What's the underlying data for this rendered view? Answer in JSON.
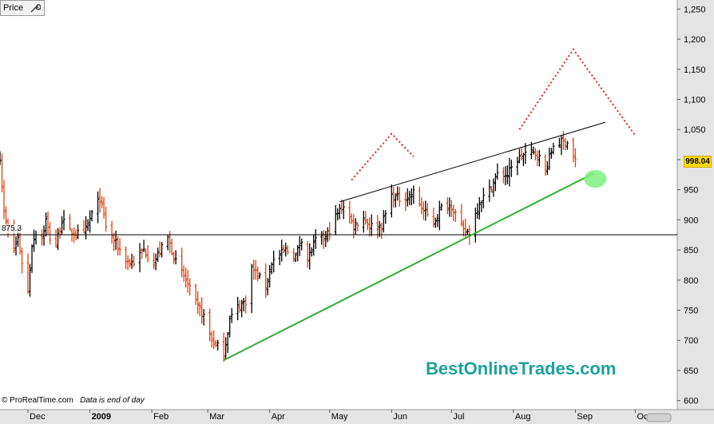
{
  "price_tab": {
    "label": "Price",
    "icon": "wrench-icon"
  },
  "watermark": "BestOnlineTrades.com",
  "footer": {
    "copyright": "© ProRealTime.com",
    "note": "Data is end of day"
  },
  "last_price_label": "998.04",
  "hline_label": "875.3",
  "colors": {
    "up_bar": "#000000",
    "down_bar": "#e8400c",
    "trend_support": "#2fae2f",
    "trend_resistance": "#000000",
    "projection": "#e8201c",
    "highlight": "#7df07d",
    "last_price_badge": "#ffdc00",
    "watermark": "#1aa39a"
  },
  "chart_data": {
    "type": "ohlc",
    "yticks": [
      600,
      650,
      700,
      750,
      800,
      850,
      900,
      950,
      1000,
      1050,
      1100,
      1150,
      1200,
      1250
    ],
    "ytick_labels": [
      "600",
      "650",
      "700",
      "750",
      "800",
      "850",
      "900",
      "950",
      "1,000",
      "1,050",
      "1,100",
      "1,150",
      "1,200",
      "1,250"
    ],
    "ylim": [
      585,
      1265
    ],
    "xlim": [
      "2008-11-17",
      "2009-10-22"
    ],
    "xticks": [
      {
        "label": "Dec",
        "date": "2008-12-01"
      },
      {
        "label": "2009",
        "date": "2009-01-01"
      },
      {
        "label": "Feb",
        "date": "2009-02-01"
      },
      {
        "label": "Mar",
        "date": "2009-03-01"
      },
      {
        "label": "Apr",
        "date": "2009-04-01"
      },
      {
        "label": "May",
        "date": "2009-05-01"
      },
      {
        "label": "Jun",
        "date": "2009-06-01"
      },
      {
        "label": "Jul",
        "date": "2009-07-01"
      },
      {
        "label": "Aug",
        "date": "2009-08-01"
      },
      {
        "label": "Sep",
        "date": "2009-09-01"
      },
      {
        "label": "Oct",
        "date": "2009-10-01"
      }
    ],
    "horizontal_line": 875.3,
    "support_line": {
      "start": [
        "2009-03-09",
        667
      ],
      "end": [
        "2009-09-10",
        977
      ]
    },
    "resistance_line": {
      "start": [
        "2009-05-06",
        930
      ],
      "end": [
        "2009-09-16",
        1062
      ]
    },
    "projection_lines": [
      {
        "points": [
          [
            "2009-05-12",
            966
          ],
          [
            "2009-06-01",
            1043
          ],
          [
            "2009-06-12",
            1005
          ]
        ]
      },
      {
        "points": [
          [
            "2009-08-04",
            1050
          ],
          [
            "2009-08-31",
            1183
          ],
          [
            "2009-10-01",
            1040
          ]
        ]
      }
    ],
    "highlight_circle": {
      "date": "2009-09-11",
      "value": 968
    },
    "keypoints": [
      [
        "2008-11-17",
        1005
      ],
      [
        "2008-11-19",
        910
      ],
      [
        "2008-11-21",
        880
      ],
      [
        "2008-11-24",
        850
      ],
      [
        "2008-11-26",
        870
      ],
      [
        "2008-11-28",
        830
      ],
      [
        "2008-12-01",
        780
      ],
      [
        "2008-12-03",
        860
      ],
      [
        "2008-12-05",
        880
      ],
      [
        "2008-12-08",
        870
      ],
      [
        "2008-12-10",
        900
      ],
      [
        "2008-12-12",
        870
      ],
      [
        "2008-12-15",
        860
      ],
      [
        "2008-12-18",
        900
      ],
      [
        "2008-12-22",
        880
      ],
      [
        "2008-12-29",
        875
      ],
      [
        "2009-01-02",
        910
      ],
      [
        "2009-01-06",
        935
      ],
      [
        "2009-01-09",
        890
      ],
      [
        "2009-01-14",
        860
      ],
      [
        "2009-01-20",
        830
      ],
      [
        "2009-01-23",
        830
      ],
      [
        "2009-01-28",
        850
      ],
      [
        "2009-02-02",
        830
      ],
      [
        "2009-02-09",
        870
      ],
      [
        "2009-02-13",
        830
      ],
      [
        "2009-02-18",
        800
      ],
      [
        "2009-02-23",
        760
      ],
      [
        "2009-02-27",
        740
      ],
      [
        "2009-03-03",
        700
      ],
      [
        "2009-03-06",
        690
      ],
      [
        "2009-03-09",
        677
      ],
      [
        "2009-03-12",
        735
      ],
      [
        "2009-03-16",
        755
      ],
      [
        "2009-03-20",
        765
      ],
      [
        "2009-03-23",
        820
      ],
      [
        "2009-03-30",
        790
      ],
      [
        "2009-04-02",
        830
      ],
      [
        "2009-04-09",
        850
      ],
      [
        "2009-04-14",
        840
      ],
      [
        "2009-04-17",
        870
      ],
      [
        "2009-04-20",
        835
      ],
      [
        "2009-04-24",
        865
      ],
      [
        "2009-04-29",
        870
      ],
      [
        "2009-05-04",
        905
      ],
      [
        "2009-05-08",
        925
      ],
      [
        "2009-05-13",
        890
      ],
      [
        "2009-05-18",
        905
      ],
      [
        "2009-05-21",
        890
      ],
      [
        "2009-05-27",
        890
      ],
      [
        "2009-06-01",
        940
      ],
      [
        "2009-06-05",
        935
      ],
      [
        "2009-06-10",
        940
      ],
      [
        "2009-06-12",
        945
      ],
      [
        "2009-06-17",
        915
      ],
      [
        "2009-06-22",
        895
      ],
      [
        "2009-06-26",
        920
      ],
      [
        "2009-07-01",
        925
      ],
      [
        "2009-07-07",
        880
      ],
      [
        "2009-07-10",
        880
      ],
      [
        "2009-07-15",
        930
      ],
      [
        "2009-07-20",
        950
      ],
      [
        "2009-07-24",
        975
      ],
      [
        "2009-07-29",
        975
      ],
      [
        "2009-08-03",
        1000
      ],
      [
        "2009-08-07",
        1010
      ],
      [
        "2009-08-13",
        1010
      ],
      [
        "2009-08-17",
        980
      ],
      [
        "2009-08-21",
        1025
      ],
      [
        "2009-08-26",
        1030
      ],
      [
        "2009-08-28",
        1030
      ],
      [
        "2009-09-01",
        998
      ]
    ]
  }
}
